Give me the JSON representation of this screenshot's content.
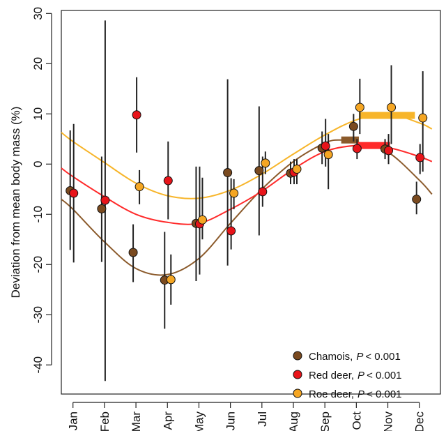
{
  "chart_data": {
    "type": "errorbar",
    "y_label": "Deviation from mean body mass (%)",
    "categories": [
      "Jan",
      "Feb",
      "Mar",
      "Apr",
      "May",
      "Jun",
      "Jul",
      "Aug",
      "Sep",
      "Oct",
      "Nov",
      "Dec"
    ],
    "xlim": [
      0.63,
      12.67
    ],
    "ylim": [
      -45.8,
      30.6
    ],
    "yticks": [
      30,
      20,
      10,
      0,
      -10,
      -20,
      -30,
      -40
    ],
    "legend": "bottom-right",
    "series": [
      {
        "name": "Chamois,",
        "p_symbol": "P",
        "p_value": "< 0.001",
        "color": "#7a4a1f",
        "curve_color": "#8b5a2b",
        "values": [
          -5.3,
          -8.9,
          -17.6,
          -23.1,
          -11.8,
          -1.7,
          -1.3,
          -1.8,
          3.2,
          7.5,
          3.0,
          -7.0
        ],
        "lower": [
          -17.1,
          -19.5,
          -23.5,
          -32.8,
          -23.3,
          -20.2,
          -14.2,
          -4,
          0,
          4.5,
          1,
          -10
        ],
        "upper": [
          6.7,
          1.5,
          -12,
          -13.5,
          -0.5,
          16.9,
          11.5,
          0.5,
          6.5,
          10,
          5,
          -3.5
        ],
        "fit_x": [
          0.63,
          1,
          2,
          3,
          4,
          5,
          6,
          7,
          8,
          9,
          9.5,
          10,
          11,
          12,
          12.4
        ],
        "fit": [
          -7,
          -9,
          -15.5,
          -20.8,
          -22,
          -18.8,
          -11.8,
          -5,
          0.5,
          4.2,
          4.8,
          4.4,
          2.4,
          -3.2,
          -6
        ],
        "peak": {
          "from": 9.52,
          "to": 10.08,
          "value": 4.8
        }
      },
      {
        "name": "Red deer,",
        "p_symbol": "P",
        "p_value": "< 0.001",
        "color": "#e8141a",
        "curve_color": "#ff2a2a",
        "values": [
          -5.8,
          -7.2,
          9.8,
          -3.3,
          -11.9,
          -13.3,
          -5.5,
          -1.6,
          3.6,
          3.1,
          2.7,
          1.3
        ],
        "lower": [
          -19.6,
          -43.2,
          2.3,
          -11,
          -22,
          -17,
          -8.5,
          -4,
          -0.5,
          1,
          0,
          -2
        ],
        "upper": [
          8,
          28.6,
          17.3,
          4.5,
          -0.5,
          -2.8,
          1.5,
          1,
          9,
          5,
          6,
          4
        ],
        "fit_x": [
          0.63,
          1,
          2,
          3,
          4,
          5,
          6,
          7,
          8,
          9,
          10,
          11,
          12,
          12.4
        ],
        "fit": [
          -0.8,
          -2.5,
          -6.5,
          -10,
          -11.6,
          -11.8,
          -9,
          -5.4,
          -1,
          2.5,
          3.7,
          3.3,
          1.5,
          0.5
        ],
        "peak": {
          "from": 10.04,
          "to": 11.07,
          "value": 3.7
        }
      },
      {
        "name": "Roe deer,",
        "p_symbol": "P",
        "p_value": "< 0.001",
        "color": "#f5a623",
        "curve_color": "#f7b52a",
        "values": [
          null,
          null,
          -4.5,
          -23,
          -11.1,
          -5.8,
          0.2,
          -1,
          1.9,
          11.3,
          11.3,
          9.2
        ],
        "lower": [
          null,
          null,
          -8,
          -28,
          -15,
          -9,
          -2,
          -4,
          -5,
          6,
          4,
          -1.5
        ],
        "upper": [
          null,
          null,
          -1.2,
          -18,
          -2.7,
          -3,
          2.5,
          1,
          6,
          17,
          19.7,
          18.5
        ],
        "fit_x": [
          0.63,
          1,
          2,
          3,
          4,
          5,
          6,
          7,
          8,
          9,
          10,
          11,
          12,
          12.4
        ],
        "fit": [
          6.3,
          4.5,
          0.3,
          -3.8,
          -6.3,
          -6.8,
          -5.2,
          -2,
          2,
          5.8,
          8.8,
          10,
          8.2,
          7
        ],
        "peak": {
          "from": 10.08,
          "to": 11.86,
          "value": 9.7
        }
      }
    ]
  }
}
